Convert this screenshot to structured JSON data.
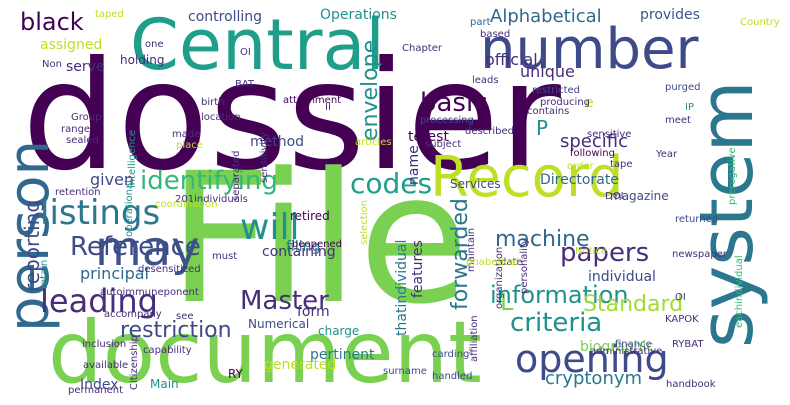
{
  "words": [
    {
      "text": "dossier",
      "color": "#440154"
    },
    {
      "text": "File",
      "color": "#7ad151"
    },
    {
      "text": "document",
      "color": "#7ad151"
    },
    {
      "text": "Central",
      "color": "#1f9e89"
    },
    {
      "text": "number",
      "color": "#3e4a89"
    },
    {
      "text": "system",
      "color": "#2a788e"
    },
    {
      "text": "Record",
      "color": "#bddf26"
    },
    {
      "text": "person",
      "color": "#31688e"
    },
    {
      "text": "may",
      "color": "#3b528b"
    },
    {
      "text": "opening",
      "color": "#3e4a89"
    },
    {
      "text": "leading",
      "color": "#472d7b"
    },
    {
      "text": "listings",
      "color": "#2a788e"
    },
    {
      "text": "identifying",
      "color": "#35b779"
    },
    {
      "text": "codes",
      "color": "#1f9e89"
    },
    {
      "text": "information",
      "color": "#21918c"
    },
    {
      "text": "Master",
      "color": "#472d7b"
    },
    {
      "text": "Reference",
      "color": "#3e4a89"
    },
    {
      "text": "will",
      "color": "#21918c"
    },
    {
      "text": "papers",
      "color": "#472d7b"
    },
    {
      "text": "machine",
      "color": "#31688e"
    },
    {
      "text": "criteria",
      "color": "#21918c"
    },
    {
      "text": "restriction",
      "color": "#3e4a89"
    },
    {
      "text": "Standard",
      "color": "#a2da37"
    },
    {
      "text": "forwarded",
      "color": "#2a788e"
    },
    {
      "text": "basic",
      "color": "#440154"
    },
    {
      "text": "envelope",
      "color": "#21918c"
    },
    {
      "text": "black",
      "color": "#440154"
    },
    {
      "text": "reporting",
      "color": "#3e4a89"
    },
    {
      "text": "Alphabetical",
      "color": "#31688e"
    },
    {
      "text": "specific",
      "color": "#472d7b"
    },
    {
      "text": "cryptonym",
      "color": "#2a788e"
    },
    {
      "text": "given",
      "color": "#3e4a89"
    },
    {
      "text": "principal",
      "color": "#31688e"
    },
    {
      "text": "pertinent",
      "color": "#2a788e"
    },
    {
      "text": "generated",
      "color": "#bddf26"
    },
    {
      "text": "official",
      "color": "#472d7b"
    },
    {
      "text": "unique",
      "color": "#472d7b"
    },
    {
      "text": "Operations",
      "color": "#21918c"
    },
    {
      "text": "controlling",
      "color": "#3e4a89"
    },
    {
      "text": "provides",
      "color": "#3b528b"
    },
    {
      "text": "method",
      "color": "#3e4a89"
    },
    {
      "text": "Directorate",
      "color": "#31688e"
    },
    {
      "text": "containing",
      "color": "#472d7b"
    },
    {
      "text": "form",
      "color": "#472d7b"
    },
    {
      "text": "thatindividual",
      "color": "#2a788e"
    },
    {
      "text": "biographic",
      "color": "#7ad151"
    },
    {
      "text": "Index",
      "color": "#3e4a89"
    },
    {
      "text": "individual",
      "color": "#3e4a89"
    },
    {
      "text": "features",
      "color": "#472d7b"
    },
    {
      "text": "name",
      "color": "#472d7b"
    },
    {
      "text": "terest",
      "color": "#440154"
    },
    {
      "text": "assigned",
      "color": "#bddf26"
    },
    {
      "text": "serve",
      "color": "#472d7b"
    },
    {
      "text": "holding",
      "color": "#472d7b"
    },
    {
      "text": "filing",
      "color": "#2a788e"
    },
    {
      "text": "magazine",
      "color": "#3e4a89"
    },
    {
      "text": "Services",
      "color": "#3e4a89"
    },
    {
      "text": "retired",
      "color": "#440154"
    },
    {
      "text": "Numerical",
      "color": "#3e4a89"
    },
    {
      "text": "charge",
      "color": "#21918c"
    },
    {
      "text": "L",
      "color": "#7ad151"
    },
    {
      "text": "P",
      "color": "#21918c"
    },
    {
      "text": "e",
      "color": "#bddf26"
    },
    {
      "text": "Main",
      "color": "#21918c"
    },
    {
      "text": "RY",
      "color": "#440154"
    },
    {
      "text": "Chapter",
      "color": "#472d7b"
    },
    {
      "text": "part",
      "color": "#31688e"
    },
    {
      "text": "based",
      "color": "#472d7b"
    },
    {
      "text": "Country",
      "color": "#bddf26"
    },
    {
      "text": "IP",
      "color": "#21918c"
    },
    {
      "text": "leads",
      "color": "#472d7b"
    },
    {
      "text": "restricted",
      "color": "#3e4a89"
    },
    {
      "text": "producing",
      "color": "#472d7b"
    },
    {
      "text": "contains",
      "color": "#472d7b"
    },
    {
      "text": "purged",
      "color": "#3e4a89"
    },
    {
      "text": "processing",
      "color": "#3e4a89"
    },
    {
      "text": "following",
      "color": "#440154"
    },
    {
      "text": "meet",
      "color": "#472d7b"
    },
    {
      "text": "sensitive",
      "color": "#472d7b"
    },
    {
      "text": "Year",
      "color": "#472d7b"
    },
    {
      "text": "prerogative",
      "color": "#35b779"
    },
    {
      "text": "described",
      "color": "#472d7b"
    },
    {
      "text": "articles",
      "color": "#bddf26"
    },
    {
      "text": "subject",
      "color": "#472d7b"
    },
    {
      "text": "order",
      "color": "#bddf26"
    },
    {
      "text": "tape",
      "color": "#472d7b"
    },
    {
      "text": "DOI",
      "color": "#472d7b"
    },
    {
      "text": "returned",
      "color": "#3e4a89"
    },
    {
      "text": "eachindividual",
      "color": "#35b779"
    },
    {
      "text": "newspaper",
      "color": "#472d7b"
    },
    {
      "text": "OI",
      "color": "#472d7b"
    },
    {
      "text": "KAPOK",
      "color": "#472d7b"
    },
    {
      "text": "finance",
      "color": "#3e4a89"
    },
    {
      "text": "administrative",
      "color": "#472d7b"
    },
    {
      "text": "RYBAT",
      "color": "#472d7b"
    },
    {
      "text": "handbook",
      "color": "#472d7b"
    },
    {
      "text": "handled",
      "color": "#3e4a89"
    },
    {
      "text": "surname",
      "color": "#3e4a89"
    },
    {
      "text": "carding",
      "color": "#3e4a89"
    },
    {
      "text": "Notice",
      "color": "#bddf26"
    },
    {
      "text": "date",
      "color": "#472d7b"
    },
    {
      "text": "personality",
      "color": "#472d7b"
    },
    {
      "text": "organization",
      "color": "#472d7b"
    },
    {
      "text": "maintain",
      "color": "#472d7b"
    },
    {
      "text": "phabetical",
      "color": "#bddf26"
    },
    {
      "text": "affiliation",
      "color": "#472d7b"
    },
    {
      "text": "selection",
      "color": "#bddf26"
    },
    {
      "text": "beopened",
      "color": "#440154"
    },
    {
      "text": "must",
      "color": "#472d7b"
    },
    {
      "text": "201individuals",
      "color": "#472d7b"
    },
    {
      "text": "separated",
      "color": "#472d7b"
    },
    {
      "text": "sensitivity",
      "color": "#472d7b"
    },
    {
      "text": "II",
      "color": "#472d7b"
    },
    {
      "text": "attachment",
      "color": "#440154"
    },
    {
      "text": "birth",
      "color": "#472d7b"
    },
    {
      "text": "location",
      "color": "#472d7b"
    },
    {
      "text": "made",
      "color": "#472d7b"
    },
    {
      "text": "place",
      "color": "#bddf26"
    },
    {
      "text": "BAT",
      "color": "#472d7b"
    },
    {
      "text": "Non",
      "color": "#472d7b"
    },
    {
      "text": "intelligence",
      "color": "#21918c"
    },
    {
      "text": "operational",
      "color": "#21918c"
    },
    {
      "text": "Group",
      "color": "#472d7b"
    },
    {
      "text": "range",
      "color": "#472d7b"
    },
    {
      "text": "sealed",
      "color": "#472d7b"
    },
    {
      "text": "retention",
      "color": "#472d7b"
    },
    {
      "text": "coordination",
      "color": "#bddf26"
    },
    {
      "text": "desensitized",
      "color": "#472d7b"
    },
    {
      "text": "autoimmuneponent",
      "color": "#472d7b"
    },
    {
      "text": "accompany",
      "color": "#472d7b"
    },
    {
      "text": "retain",
      "color": "#21918c"
    },
    {
      "text": "see",
      "color": "#472d7b"
    },
    {
      "text": "inclusion",
      "color": "#472d7b"
    },
    {
      "text": "capability",
      "color": "#472d7b"
    },
    {
      "text": "available",
      "color": "#472d7b"
    },
    {
      "text": "Citizenship",
      "color": "#472d7b"
    },
    {
      "text": "permanent",
      "color": "#472d7b"
    },
    {
      "text": "one",
      "color": "#472d7b"
    },
    {
      "text": "taped",
      "color": "#bddf26"
    },
    {
      "text": "OI",
      "color": "#472d7b"
    }
  ]
}
